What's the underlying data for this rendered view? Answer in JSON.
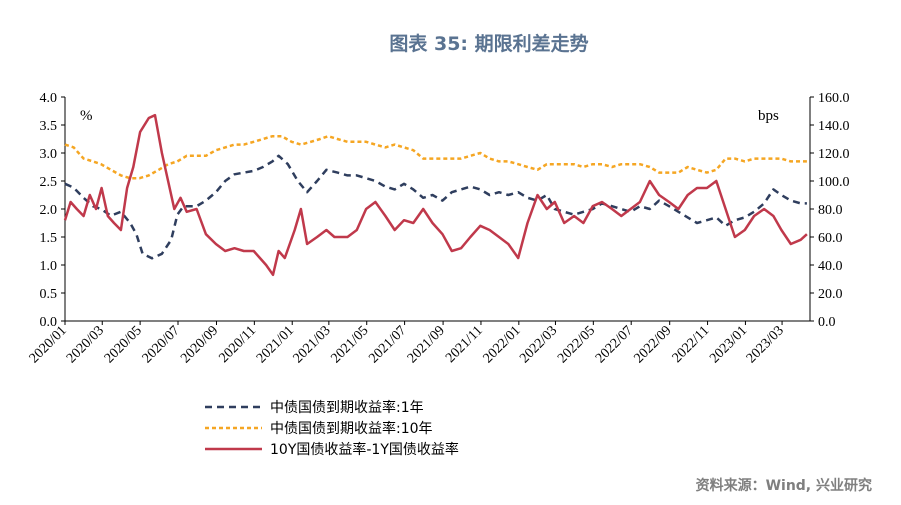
{
  "title": "图表 35: 期限利差走势",
  "source": "资料来源：Wind, 兴业研究",
  "chart_data": {
    "type": "line",
    "left_unit": "%",
    "right_unit": "bps",
    "left_ylim": [
      0,
      4
    ],
    "right_ylim": [
      0,
      160
    ],
    "left_ticks": [
      "0.0",
      "0.5",
      "1.0",
      "1.5",
      "2.0",
      "2.5",
      "3.0",
      "3.5",
      "4.0"
    ],
    "right_ticks": [
      "0.0",
      "20.0",
      "40.0",
      "60.0",
      "80.0",
      "100.0",
      "120.0",
      "140.0",
      "160.0"
    ],
    "x_ticks": [
      "2020/01",
      "2020/03",
      "2020/05",
      "2020/07",
      "2020/09",
      "2020/11",
      "2021/01",
      "2021/03",
      "2021/05",
      "2021/07",
      "2021/09",
      "2021/11",
      "2022/01",
      "2022/03",
      "2022/05",
      "2022/07",
      "2022/09",
      "2022/11",
      "2023/01",
      "2023/03"
    ],
    "x_range": [
      "2020-01-01",
      "2023-04-15"
    ],
    "series": [
      {
        "name": "中债国债到期收益率:1年",
        "axis": "left",
        "color": "#2f3e5e",
        "dash": "dashed",
        "points": [
          [
            "2020-01-01",
            2.45
          ],
          [
            "2020-01-15",
            2.38
          ],
          [
            "2020-01-31",
            2.2
          ],
          [
            "2020-02-15",
            2.05
          ],
          [
            "2020-02-28",
            2.0
          ],
          [
            "2020-03-15",
            1.88
          ],
          [
            "2020-03-31",
            1.95
          ],
          [
            "2020-04-15",
            1.75
          ],
          [
            "2020-04-25",
            1.55
          ],
          [
            "2020-05-05",
            1.2
          ],
          [
            "2020-05-20",
            1.12
          ],
          [
            "2020-06-05",
            1.2
          ],
          [
            "2020-06-20",
            1.45
          ],
          [
            "2020-06-30",
            1.9
          ],
          [
            "2020-07-10",
            2.05
          ],
          [
            "2020-07-31",
            2.05
          ],
          [
            "2020-08-15",
            2.15
          ],
          [
            "2020-08-31",
            2.3
          ],
          [
            "2020-09-15",
            2.5
          ],
          [
            "2020-09-30",
            2.62
          ],
          [
            "2020-10-15",
            2.65
          ],
          [
            "2020-10-31",
            2.68
          ],
          [
            "2020-11-15",
            2.75
          ],
          [
            "2020-11-30",
            2.85
          ],
          [
            "2020-12-10",
            2.95
          ],
          [
            "2020-12-25",
            2.8
          ],
          [
            "2021-01-10",
            2.5
          ],
          [
            "2021-01-25",
            2.3
          ],
          [
            "2021-02-10",
            2.5
          ],
          [
            "2021-02-25",
            2.7
          ],
          [
            "2021-03-15",
            2.65
          ],
          [
            "2021-03-31",
            2.6
          ],
          [
            "2021-04-15",
            2.6
          ],
          [
            "2021-04-30",
            2.55
          ],
          [
            "2021-05-15",
            2.5
          ],
          [
            "2021-05-31",
            2.4
          ],
          [
            "2021-06-15",
            2.35
          ],
          [
            "2021-06-30",
            2.45
          ],
          [
            "2021-07-15",
            2.35
          ],
          [
            "2021-07-31",
            2.2
          ],
          [
            "2021-08-15",
            2.25
          ],
          [
            "2021-08-31",
            2.15
          ],
          [
            "2021-09-15",
            2.3
          ],
          [
            "2021-09-30",
            2.35
          ],
          [
            "2021-10-15",
            2.4
          ],
          [
            "2021-10-31",
            2.35
          ],
          [
            "2021-11-15",
            2.25
          ],
          [
            "2021-11-30",
            2.3
          ],
          [
            "2021-12-15",
            2.25
          ],
          [
            "2021-12-31",
            2.3
          ],
          [
            "2022-01-15",
            2.2
          ],
          [
            "2022-01-31",
            2.15
          ],
          [
            "2022-02-15",
            2.25
          ],
          [
            "2022-02-28",
            2.0
          ],
          [
            "2022-03-15",
            1.95
          ],
          [
            "2022-03-31",
            1.9
          ],
          [
            "2022-04-15",
            1.95
          ],
          [
            "2022-04-30",
            2.0
          ],
          [
            "2022-05-15",
            2.1
          ],
          [
            "2022-05-31",
            2.05
          ],
          [
            "2022-06-15",
            2.0
          ],
          [
            "2022-06-30",
            1.95
          ],
          [
            "2022-07-15",
            2.05
          ],
          [
            "2022-07-31",
            2.0
          ],
          [
            "2022-08-15",
            2.15
          ],
          [
            "2022-08-31",
            2.05
          ],
          [
            "2022-09-15",
            1.95
          ],
          [
            "2022-09-30",
            1.85
          ],
          [
            "2022-10-15",
            1.75
          ],
          [
            "2022-10-31",
            1.8
          ],
          [
            "2022-11-15",
            1.85
          ],
          [
            "2022-11-30",
            1.7
          ],
          [
            "2022-12-15",
            1.8
          ],
          [
            "2022-12-31",
            1.85
          ],
          [
            "2023-01-15",
            1.95
          ],
          [
            "2023-01-31",
            2.1
          ],
          [
            "2023-02-15",
            2.35
          ],
          [
            "2023-02-28",
            2.25
          ],
          [
            "2023-03-15",
            2.15
          ],
          [
            "2023-03-31",
            2.1
          ],
          [
            "2023-04-10",
            2.1
          ]
        ]
      },
      {
        "name": "中债国债到期收益率:10年",
        "axis": "left",
        "color": "#f5a623",
        "dash": "short",
        "points": [
          [
            "2020-01-01",
            3.15
          ],
          [
            "2020-01-15",
            3.1
          ],
          [
            "2020-01-31",
            2.9
          ],
          [
            "2020-02-15",
            2.85
          ],
          [
            "2020-02-28",
            2.8
          ],
          [
            "2020-03-15",
            2.7
          ],
          [
            "2020-03-31",
            2.6
          ],
          [
            "2020-04-15",
            2.55
          ],
          [
            "2020-04-30",
            2.55
          ],
          [
            "2020-05-15",
            2.6
          ],
          [
            "2020-05-31",
            2.7
          ],
          [
            "2020-06-15",
            2.8
          ],
          [
            "2020-06-30",
            2.85
          ],
          [
            "2020-07-15",
            2.95
          ],
          [
            "2020-07-31",
            2.95
          ],
          [
            "2020-08-15",
            2.95
          ],
          [
            "2020-08-31",
            3.05
          ],
          [
            "2020-09-15",
            3.1
          ],
          [
            "2020-09-30",
            3.15
          ],
          [
            "2020-10-15",
            3.15
          ],
          [
            "2020-10-31",
            3.2
          ],
          [
            "2020-11-15",
            3.25
          ],
          [
            "2020-11-30",
            3.3
          ],
          [
            "2020-12-15",
            3.3
          ],
          [
            "2020-12-31",
            3.2
          ],
          [
            "2021-01-15",
            3.15
          ],
          [
            "2021-01-31",
            3.2
          ],
          [
            "2021-02-15",
            3.25
          ],
          [
            "2021-02-28",
            3.3
          ],
          [
            "2021-03-15",
            3.25
          ],
          [
            "2021-03-31",
            3.2
          ],
          [
            "2021-04-15",
            3.2
          ],
          [
            "2021-04-30",
            3.2
          ],
          [
            "2021-05-15",
            3.15
          ],
          [
            "2021-05-31",
            3.1
          ],
          [
            "2021-06-15",
            3.15
          ],
          [
            "2021-06-30",
            3.1
          ],
          [
            "2021-07-15",
            3.05
          ],
          [
            "2021-07-31",
            2.9
          ],
          [
            "2021-08-15",
            2.9
          ],
          [
            "2021-08-31",
            2.9
          ],
          [
            "2021-09-15",
            2.9
          ],
          [
            "2021-09-30",
            2.9
          ],
          [
            "2021-10-15",
            2.95
          ],
          [
            "2021-10-31",
            3.0
          ],
          [
            "2021-11-15",
            2.9
          ],
          [
            "2021-11-30",
            2.85
          ],
          [
            "2021-12-15",
            2.85
          ],
          [
            "2021-12-31",
            2.8
          ],
          [
            "2022-01-15",
            2.75
          ],
          [
            "2022-01-31",
            2.7
          ],
          [
            "2022-02-15",
            2.8
          ],
          [
            "2022-02-28",
            2.8
          ],
          [
            "2022-03-15",
            2.8
          ],
          [
            "2022-03-31",
            2.8
          ],
          [
            "2022-04-15",
            2.75
          ],
          [
            "2022-04-30",
            2.8
          ],
          [
            "2022-05-15",
            2.8
          ],
          [
            "2022-05-31",
            2.75
          ],
          [
            "2022-06-15",
            2.8
          ],
          [
            "2022-06-30",
            2.8
          ],
          [
            "2022-07-15",
            2.8
          ],
          [
            "2022-07-31",
            2.75
          ],
          [
            "2022-08-15",
            2.65
          ],
          [
            "2022-08-31",
            2.65
          ],
          [
            "2022-09-15",
            2.65
          ],
          [
            "2022-09-30",
            2.75
          ],
          [
            "2022-10-15",
            2.7
          ],
          [
            "2022-10-31",
            2.65
          ],
          [
            "2022-11-15",
            2.7
          ],
          [
            "2022-11-30",
            2.9
          ],
          [
            "2022-12-15",
            2.9
          ],
          [
            "2022-12-31",
            2.85
          ],
          [
            "2023-01-15",
            2.9
          ],
          [
            "2023-01-31",
            2.9
          ],
          [
            "2023-02-15",
            2.9
          ],
          [
            "2023-02-28",
            2.9
          ],
          [
            "2023-03-15",
            2.85
          ],
          [
            "2023-03-31",
            2.85
          ],
          [
            "2023-04-10",
            2.85
          ]
        ]
      },
      {
        "name": "10Y国债收益率-1Y国债收益率",
        "axis": "right",
        "color": "#c0394b",
        "dash": "solid",
        "points": [
          [
            "2020-01-01",
            72
          ],
          [
            "2020-01-10",
            85
          ],
          [
            "2020-01-20",
            80
          ],
          [
            "2020-01-31",
            75
          ],
          [
            "2020-02-10",
            90
          ],
          [
            "2020-02-20",
            80
          ],
          [
            "2020-02-29",
            95
          ],
          [
            "2020-03-10",
            75
          ],
          [
            "2020-03-20",
            70
          ],
          [
            "2020-03-31",
            65
          ],
          [
            "2020-04-10",
            95
          ],
          [
            "2020-04-20",
            110
          ],
          [
            "2020-05-01",
            135
          ],
          [
            "2020-05-15",
            145
          ],
          [
            "2020-05-25",
            147
          ],
          [
            "2020-06-05",
            120
          ],
          [
            "2020-06-15",
            100
          ],
          [
            "2020-06-25",
            80
          ],
          [
            "2020-07-05",
            88
          ],
          [
            "2020-07-15",
            78
          ],
          [
            "2020-07-31",
            80
          ],
          [
            "2020-08-15",
            62
          ],
          [
            "2020-08-31",
            55
          ],
          [
            "2020-09-15",
            50
          ],
          [
            "2020-09-30",
            52
          ],
          [
            "2020-10-15",
            50
          ],
          [
            "2020-10-31",
            50
          ],
          [
            "2020-11-10",
            45
          ],
          [
            "2020-11-20",
            40
          ],
          [
            "2020-12-01",
            33
          ],
          [
            "2020-12-10",
            50
          ],
          [
            "2020-12-20",
            45
          ],
          [
            "2021-01-05",
            65
          ],
          [
            "2021-01-15",
            80
          ],
          [
            "2021-01-25",
            55
          ],
          [
            "2021-02-10",
            60
          ],
          [
            "2021-02-25",
            65
          ],
          [
            "2021-03-10",
            60
          ],
          [
            "2021-03-31",
            60
          ],
          [
            "2021-04-15",
            65
          ],
          [
            "2021-04-30",
            80
          ],
          [
            "2021-05-15",
            85
          ],
          [
            "2021-05-31",
            75
          ],
          [
            "2021-06-15",
            65
          ],
          [
            "2021-06-30",
            72
          ],
          [
            "2021-07-15",
            70
          ],
          [
            "2021-07-31",
            80
          ],
          [
            "2021-08-15",
            70
          ],
          [
            "2021-08-31",
            62
          ],
          [
            "2021-09-15",
            50
          ],
          [
            "2021-09-30",
            52
          ],
          [
            "2021-10-15",
            60
          ],
          [
            "2021-10-31",
            68
          ],
          [
            "2021-11-15",
            65
          ],
          [
            "2021-11-30",
            60
          ],
          [
            "2021-12-15",
            55
          ],
          [
            "2021-12-31",
            45
          ],
          [
            "2022-01-15",
            70
          ],
          [
            "2022-01-31",
            90
          ],
          [
            "2022-02-15",
            80
          ],
          [
            "2022-02-28",
            85
          ],
          [
            "2022-03-15",
            70
          ],
          [
            "2022-03-31",
            75
          ],
          [
            "2022-04-15",
            70
          ],
          [
            "2022-04-30",
            82
          ],
          [
            "2022-05-15",
            85
          ],
          [
            "2022-05-31",
            80
          ],
          [
            "2022-06-15",
            75
          ],
          [
            "2022-06-30",
            80
          ],
          [
            "2022-07-15",
            85
          ],
          [
            "2022-07-31",
            100
          ],
          [
            "2022-08-15",
            90
          ],
          [
            "2022-08-31",
            85
          ],
          [
            "2022-09-15",
            80
          ],
          [
            "2022-09-30",
            90
          ],
          [
            "2022-10-15",
            95
          ],
          [
            "2022-10-31",
            95
          ],
          [
            "2022-11-15",
            100
          ],
          [
            "2022-11-30",
            80
          ],
          [
            "2022-12-15",
            60
          ],
          [
            "2022-12-31",
            65
          ],
          [
            "2023-01-15",
            75
          ],
          [
            "2023-01-31",
            80
          ],
          [
            "2023-02-15",
            75
          ],
          [
            "2023-02-28",
            65
          ],
          [
            "2023-03-15",
            55
          ],
          [
            "2023-03-31",
            58
          ],
          [
            "2023-04-10",
            62
          ]
        ]
      }
    ]
  }
}
